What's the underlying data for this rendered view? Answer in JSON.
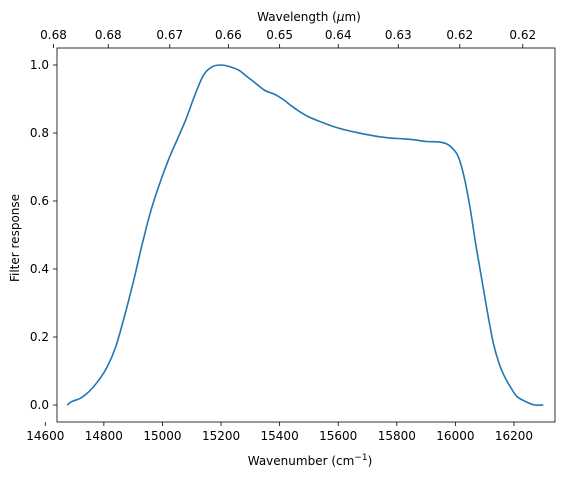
{
  "chart_data": {
    "type": "line",
    "xlabel": "Wavenumber (cm",
    "xlabel_superscript": "−1",
    "xlabel_suffix": ")",
    "ylabel": "Filter response",
    "top_xlabel": "Wavelength (",
    "top_xlabel_mu": "μ",
    "top_xlabel_suffix": "m)",
    "xlim": [
      14640,
      16340
    ],
    "ylim": [
      -0.05,
      1.05
    ],
    "x_ticks": [
      14600,
      14800,
      15000,
      15200,
      15400,
      15600,
      15800,
      16000,
      16200
    ],
    "y_ticks": [
      0.0,
      0.2,
      0.4,
      0.6,
      0.8,
      1.0
    ],
    "y_tick_labels": [
      "0.0",
      "0.2",
      "0.4",
      "0.6",
      "0.8",
      "1.0"
    ],
    "top_ticks": [
      {
        "wavenumber": 14628,
        "label": "0.68"
      },
      {
        "wavenumber": 14815,
        "label": "0.68"
      },
      {
        "wavenumber": 15025,
        "label": "0.67"
      },
      {
        "wavenumber": 15225,
        "label": "0.66"
      },
      {
        "wavenumber": 15400,
        "label": "0.65"
      },
      {
        "wavenumber": 15600,
        "label": "0.64"
      },
      {
        "wavenumber": 15805,
        "label": "0.63"
      },
      {
        "wavenumber": 16015,
        "label": "0.62"
      },
      {
        "wavenumber": 16230,
        "label": "0.62"
      }
    ],
    "series": [
      {
        "color": "#1f77b4",
        "x": [
          14675,
          14690,
          14720,
          14750,
          14780,
          14810,
          14840,
          14870,
          14900,
          14930,
          14960,
          14990,
          15020,
          15050,
          15080,
          15110,
          15140,
          15170,
          15200,
          15230,
          15260,
          15290,
          15320,
          15350,
          15380,
          15410,
          15440,
          15470,
          15500,
          15540,
          15580,
          15620,
          15660,
          15700,
          15740,
          15780,
          15820,
          15860,
          15900,
          15940,
          15970,
          15990,
          16010,
          16030,
          16050,
          16070,
          16090,
          16110,
          16130,
          16150,
          16170,
          16190,
          16210,
          16240,
          16270,
          16300
        ],
        "y": [
          0.0,
          0.01,
          0.02,
          0.04,
          0.07,
          0.11,
          0.17,
          0.26,
          0.36,
          0.47,
          0.57,
          0.65,
          0.72,
          0.78,
          0.84,
          0.91,
          0.97,
          0.995,
          1.0,
          0.995,
          0.985,
          0.965,
          0.945,
          0.925,
          0.915,
          0.9,
          0.88,
          0.862,
          0.847,
          0.833,
          0.82,
          0.81,
          0.802,
          0.795,
          0.789,
          0.785,
          0.783,
          0.78,
          0.775,
          0.774,
          0.768,
          0.755,
          0.73,
          0.67,
          0.58,
          0.47,
          0.37,
          0.27,
          0.18,
          0.12,
          0.08,
          0.05,
          0.025,
          0.01,
          0.0,
          0.0
        ]
      }
    ]
  }
}
